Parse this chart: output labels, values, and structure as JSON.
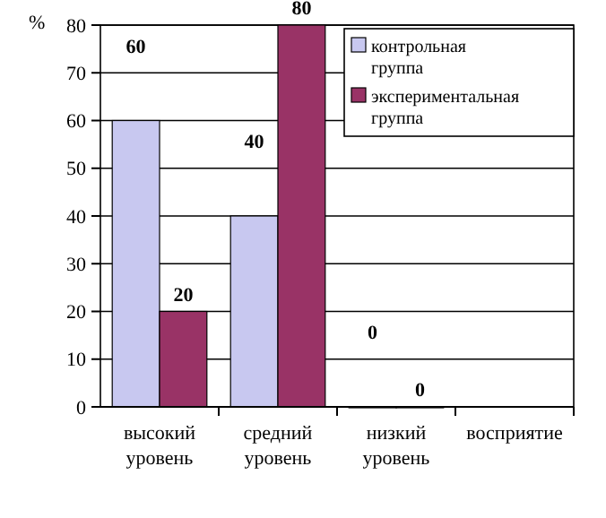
{
  "chart_data": {
    "type": "bar",
    "ylabel": "%",
    "categories": [
      "высокий уровень",
      "средний уровень",
      "низкий уровень",
      "восприятие"
    ],
    "series": [
      {
        "name": "контрольная группа",
        "color": "#c8c8f0",
        "values": [
          60,
          40,
          0,
          null
        ]
      },
      {
        "name": "экспериментальная группа",
        "color": "#993366",
        "values": [
          20,
          80,
          0,
          null
        ]
      }
    ],
    "ylim": [
      0,
      80
    ],
    "yticks": [
      0,
      10,
      20,
      30,
      40,
      50,
      60,
      70,
      80
    ],
    "grid": "y",
    "legend": "top right",
    "data_labels": true
  }
}
